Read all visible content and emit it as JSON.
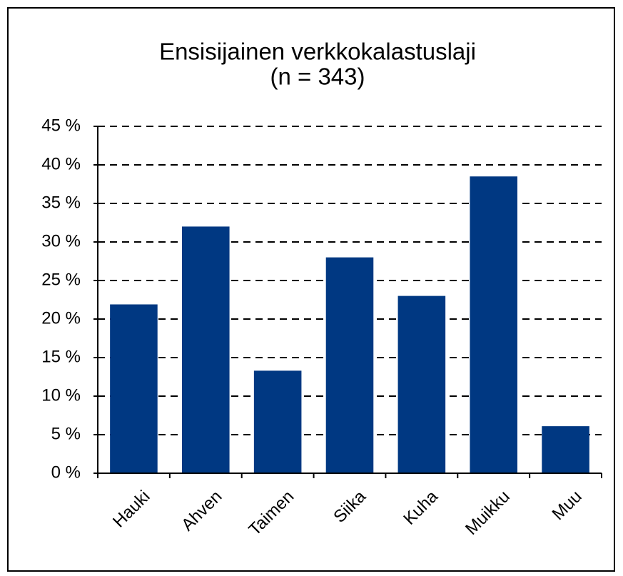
{
  "chart_data": {
    "type": "bar",
    "title": "Ensisijainen verkkokalastuslaji",
    "subtitle": "(n = 343)",
    "categories": [
      "Hauki",
      "Ahven",
      "Taimen",
      "Siika",
      "Kuha",
      "Muikku",
      "Muu"
    ],
    "values": [
      21.9,
      32.0,
      13.3,
      28.0,
      23.0,
      38.5,
      6.1
    ],
    "color": "#003882",
    "ylim": [
      0,
      45
    ],
    "yticks": [
      {
        "value": 0,
        "label": "0 %"
      },
      {
        "value": 5,
        "label": "5 %"
      },
      {
        "value": 10,
        "label": "10 %"
      },
      {
        "value": 15,
        "label": "15 %"
      },
      {
        "value": 20,
        "label": "20 %"
      },
      {
        "value": 25,
        "label": "25 %"
      },
      {
        "value": 30,
        "label": "30 %"
      },
      {
        "value": 35,
        "label": "35 %"
      },
      {
        "value": 40,
        "label": "40 %"
      },
      {
        "value": 45,
        "label": "45 %"
      }
    ],
    "grid": true
  }
}
